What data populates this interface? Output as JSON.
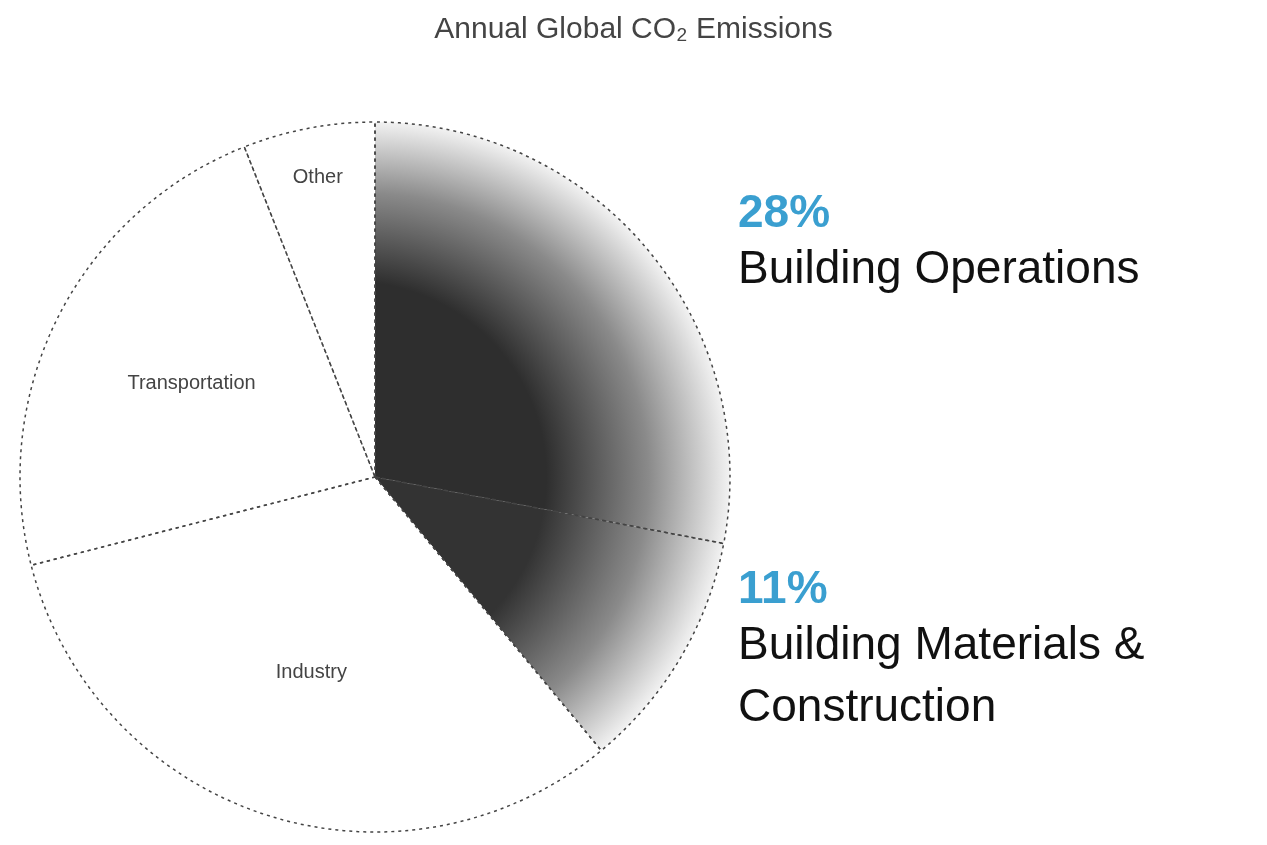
{
  "chart_data": {
    "type": "pie",
    "title": "Annual Global CO₂ Emissions",
    "categories": [
      "Building Operations",
      "Building Materials & Construction",
      "Industry",
      "Transportation",
      "Other"
    ],
    "values": [
      28,
      11,
      32,
      23,
      6
    ],
    "value_labels": [
      "28%",
      "11%",
      null,
      null,
      null
    ],
    "colors": [
      "#2e2e2e",
      "#333333",
      "#ffffff",
      "#ffffff",
      "#ffffff"
    ],
    "data_labels": true
  }
}
